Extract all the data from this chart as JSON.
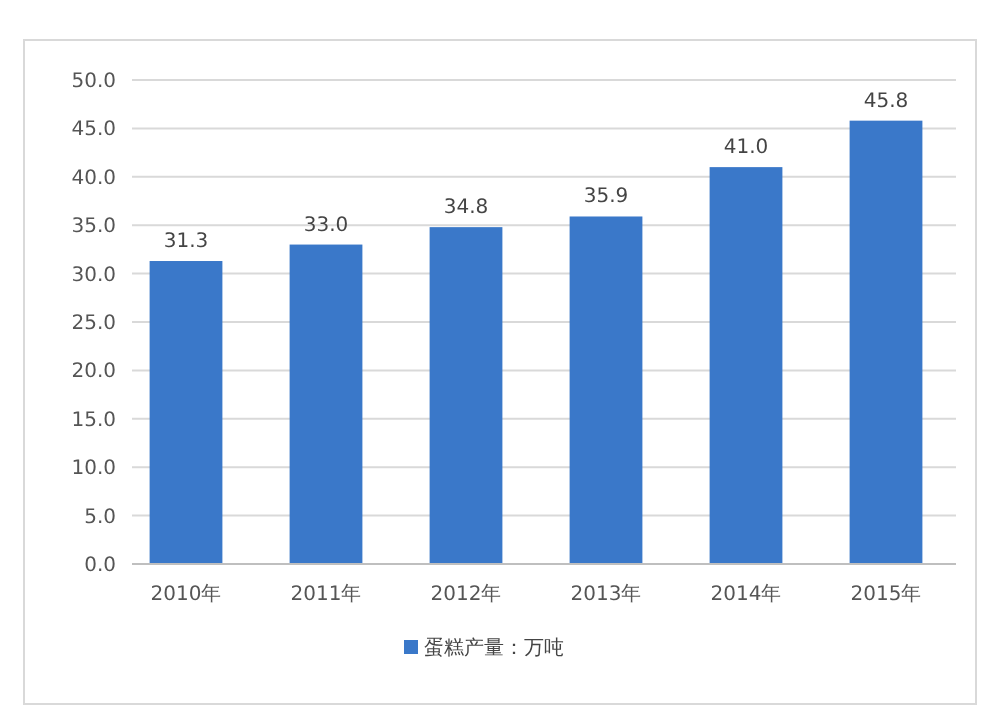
{
  "chart_data": {
    "type": "bar",
    "categories": [
      "2010年",
      "2011年",
      "2012年",
      "2013年",
      "2014年",
      "2015年"
    ],
    "series": [
      {
        "name": "蛋糕产量：万吨",
        "color": "#3a78c9",
        "values": [
          31.3,
          33.0,
          34.8,
          35.9,
          41.0,
          45.8
        ],
        "value_labels": [
          "31.3",
          "33.0",
          "34.8",
          "35.9",
          "41.0",
          "45.8"
        ]
      }
    ],
    "ylim": [
      0,
      50
    ],
    "yticks": [
      {
        "value": 0,
        "label": "0.0"
      },
      {
        "value": 5,
        "label": "5.0"
      },
      {
        "value": 10,
        "label": "10.0"
      },
      {
        "value": 15,
        "label": "15.0"
      },
      {
        "value": 20,
        "label": "20.0"
      },
      {
        "value": 25,
        "label": "25.0"
      },
      {
        "value": 30,
        "label": "30.0"
      },
      {
        "value": 35,
        "label": "35.0"
      },
      {
        "value": 40,
        "label": "40.0"
      },
      {
        "value": 45,
        "label": "45.0"
      },
      {
        "value": 50,
        "label": "50.0"
      }
    ],
    "grid": "y",
    "legend": "bottom"
  }
}
